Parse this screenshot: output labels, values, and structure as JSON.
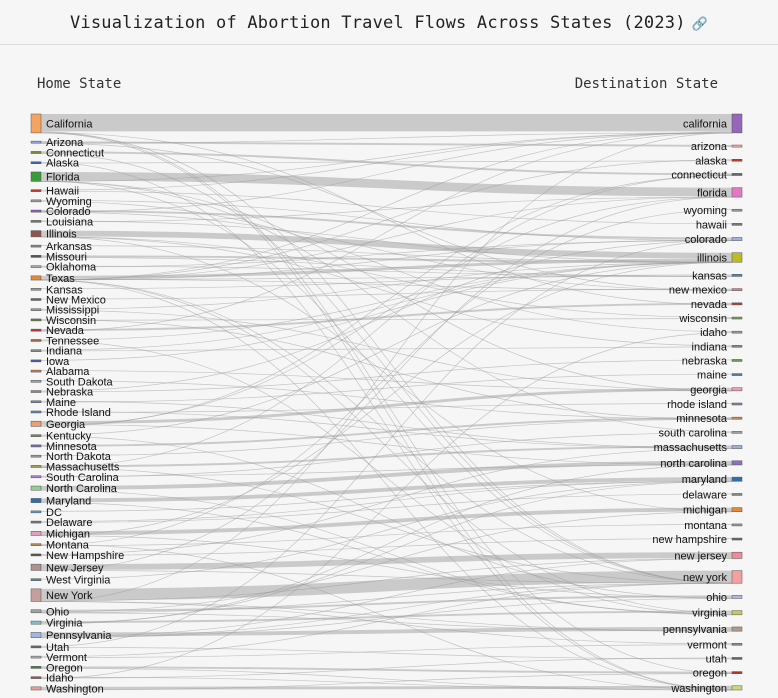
{
  "page": {
    "title": "Visualization of Abortion Travel Flows Across States (2023)",
    "title_icon": "link-icon",
    "home_label": "Home State",
    "dest_label": "Destination State"
  },
  "colors": {
    "background": "#f6f6f6",
    "link": "#bdbdbd",
    "title_icon": "#4a7fd6"
  },
  "home_states": [
    {
      "name": "California",
      "color": "#f4a460",
      "w": 18
    },
    {
      "name": "Arizona",
      "color": "#8ea1d8",
      "w": 2
    },
    {
      "name": "Connecticut",
      "color": "#7a8a3a",
      "w": 2
    },
    {
      "name": "Alaska",
      "color": "#4466aa",
      "w": 1
    },
    {
      "name": "Florida",
      "color": "#3c9a3c",
      "w": 9
    },
    {
      "name": "Hawaii",
      "color": "#c0392b",
      "w": 1
    },
    {
      "name": "Wyoming",
      "color": "#999999",
      "w": 1
    },
    {
      "name": "Colorado",
      "color": "#8a5ac8",
      "w": 2
    },
    {
      "name": "Louisiana",
      "color": "#777777",
      "w": 1
    },
    {
      "name": "Illinois",
      "color": "#8c564b",
      "w": 6
    },
    {
      "name": "Arkansas",
      "color": "#888888",
      "w": 1
    },
    {
      "name": "Missouri",
      "color": "#555555",
      "w": 2
    },
    {
      "name": "Oklahoma",
      "color": "#aaaaaa",
      "w": 1
    },
    {
      "name": "Texas",
      "color": "#e08a3c",
      "w": 4
    },
    {
      "name": "Kansas",
      "color": "#999999",
      "w": 1
    },
    {
      "name": "New Mexico",
      "color": "#666666",
      "w": 1
    },
    {
      "name": "Mississippi",
      "color": "#999999",
      "w": 1
    },
    {
      "name": "Wisconsin",
      "color": "#5f7f3f",
      "w": 1
    },
    {
      "name": "Nevada",
      "color": "#b03a3a",
      "w": 2
    },
    {
      "name": "Tennessee",
      "color": "#9a6a4a",
      "w": 1
    },
    {
      "name": "Indiana",
      "color": "#888888",
      "w": 1
    },
    {
      "name": "Iowa",
      "color": "#3f5fa0",
      "w": 1
    },
    {
      "name": "Alabama",
      "color": "#d07a3a",
      "w": 1
    },
    {
      "name": "South Dakota",
      "color": "#a0a0a0",
      "w": 1
    },
    {
      "name": "Nebraska",
      "color": "#888888",
      "w": 1
    },
    {
      "name": "Maine",
      "color": "#6a8ab0",
      "w": 1
    },
    {
      "name": "Rhode Island",
      "color": "#5a8ac0",
      "w": 1
    },
    {
      "name": "Georgia",
      "color": "#e8a070",
      "w": 5
    },
    {
      "name": "Kentucky",
      "color": "#8a7a5a",
      "w": 1
    },
    {
      "name": "Minnesota",
      "color": "#7a6ab0",
      "w": 2
    },
    {
      "name": "North Dakota",
      "color": "#999999",
      "w": 1
    },
    {
      "name": "Massachusetts",
      "color": "#a0a050",
      "w": 2
    },
    {
      "name": "South Carolina",
      "color": "#aa7fc0",
      "w": 2
    },
    {
      "name": "North Carolina",
      "color": "#8fd08f",
      "w": 4
    },
    {
      "name": "Maryland",
      "color": "#2f6fb0",
      "w": 4
    },
    {
      "name": "DC",
      "color": "#5a9ad0",
      "w": 1
    },
    {
      "name": "Delaware",
      "color": "#777777",
      "w": 1
    },
    {
      "name": "Michigan",
      "color": "#e0a0c0",
      "w": 4
    },
    {
      "name": "Montana",
      "color": "#b08a5a",
      "w": 1
    },
    {
      "name": "New Hampshire",
      "color": "#555555",
      "w": 1
    },
    {
      "name": "New Jersey",
      "color": "#b09090",
      "w": 6
    },
    {
      "name": "West Virginia",
      "color": "#4a8a8a",
      "w": 1
    },
    {
      "name": "New York",
      "color": "#c4a09a",
      "w": 12
    },
    {
      "name": "Ohio",
      "color": "#a0a0a0",
      "w": 3
    },
    {
      "name": "Virginia",
      "color": "#80c0c0",
      "w": 3
    },
    {
      "name": "Pennsylvania",
      "color": "#a0b8e0",
      "w": 5
    },
    {
      "name": "Utah",
      "color": "#666666",
      "w": 1
    },
    {
      "name": "Vermont",
      "color": "#aaaaaa",
      "w": 1
    },
    {
      "name": "Oregon",
      "color": "#3a8a3a",
      "w": 2
    },
    {
      "name": "Idaho",
      "color": "#b05050",
      "w": 1
    },
    {
      "name": "Washington",
      "color": "#f09a9a",
      "w": 3
    }
  ],
  "destination_states": [
    {
      "name": "california",
      "color": "#9467bd",
      "w": 18
    },
    {
      "name": "arizona",
      "color": "#f4a6a6",
      "w": 2
    },
    {
      "name": "alaska",
      "color": "#c0392b",
      "w": 1
    },
    {
      "name": "connecticut",
      "color": "#666666",
      "w": 2
    },
    {
      "name": "florida",
      "color": "#e377c2",
      "w": 9
    },
    {
      "name": "wyoming",
      "color": "#999999",
      "w": 1
    },
    {
      "name": "hawaii",
      "color": "#777777",
      "w": 1
    },
    {
      "name": "colorado",
      "color": "#a0b0e0",
      "w": 3
    },
    {
      "name": "illinois",
      "color": "#bcbd22",
      "w": 9
    },
    {
      "name": "kansas",
      "color": "#2f8fbf",
      "w": 2
    },
    {
      "name": "new mexico",
      "color": "#e08080",
      "w": 2
    },
    {
      "name": "nevada",
      "color": "#b03a3a",
      "w": 2
    },
    {
      "name": "wisconsin",
      "color": "#7a9a5a",
      "w": 1
    },
    {
      "name": "idaho",
      "color": "#999999",
      "w": 1
    },
    {
      "name": "indiana",
      "color": "#888888",
      "w": 1
    },
    {
      "name": "nebraska",
      "color": "#6a9a4a",
      "w": 1
    },
    {
      "name": "maine",
      "color": "#5a7aa0",
      "w": 1
    },
    {
      "name": "georgia",
      "color": "#e8a0b0",
      "w": 3
    },
    {
      "name": "rhode island",
      "color": "#7a8aa0",
      "w": 1
    },
    {
      "name": "minnesota",
      "color": "#c08a5a",
      "w": 2
    },
    {
      "name": "south carolina",
      "color": "#a0a0a0",
      "w": 1
    },
    {
      "name": "massachusetts",
      "color": "#a0b0d0",
      "w": 3
    },
    {
      "name": "north carolina",
      "color": "#8a70c0",
      "w": 4
    },
    {
      "name": "maryland",
      "color": "#2f6fb0",
      "w": 4
    },
    {
      "name": "delaware",
      "color": "#888888",
      "w": 1
    },
    {
      "name": "michigan",
      "color": "#e08a3c",
      "w": 4
    },
    {
      "name": "montana",
      "color": "#999999",
      "w": 1
    },
    {
      "name": "new hampshire",
      "color": "#666666",
      "w": 1
    },
    {
      "name": "new jersey",
      "color": "#f08a9a",
      "w": 6
    },
    {
      "name": "new york",
      "color": "#f4a0a0",
      "w": 12
    },
    {
      "name": "ohio",
      "color": "#c0b0e0",
      "w": 3
    },
    {
      "name": "virginia",
      "color": "#c8c85a",
      "w": 4
    },
    {
      "name": "pennsylvania",
      "color": "#b09a8a",
      "w": 4
    },
    {
      "name": "vermont",
      "color": "#888888",
      "w": 1
    },
    {
      "name": "utah",
      "color": "#666666",
      "w": 1
    },
    {
      "name": "oregon",
      "color": "#b03030",
      "w": 2
    },
    {
      "name": "washington",
      "color": "#c8d87a",
      "w": 4
    }
  ],
  "flows": [
    [
      "California",
      "california",
      18
    ],
    [
      "Florida",
      "florida",
      9
    ],
    [
      "New York",
      "new york",
      12
    ],
    [
      "Illinois",
      "illinois",
      6
    ],
    [
      "Texas",
      "illinois",
      3
    ],
    [
      "New Jersey",
      "new jersey",
      6
    ],
    [
      "Georgia",
      "georgia",
      3
    ],
    [
      "Pennsylvania",
      "pennsylvania",
      4
    ],
    [
      "Maryland",
      "maryland",
      4
    ],
    [
      "Michigan",
      "michigan",
      4
    ],
    [
      "North Carolina",
      "north carolina",
      4
    ],
    [
      "Washington",
      "washington",
      3
    ],
    [
      "Colorado",
      "colorado",
      2
    ],
    [
      "Massachusetts",
      "massachusetts",
      2
    ],
    [
      "Virginia",
      "virginia",
      2
    ],
    [
      "Ohio",
      "ohio",
      2
    ],
    [
      "Arizona",
      "arizona",
      2
    ],
    [
      "Connecticut",
      "connecticut",
      2
    ],
    [
      "Minnesota",
      "minnesota",
      2
    ],
    [
      "Nevada",
      "nevada",
      2
    ],
    [
      "Oregon",
      "oregon",
      2
    ],
    [
      "Missouri",
      "illinois",
      2
    ],
    [
      "Kansas",
      "kansas",
      1
    ],
    [
      "New Mexico",
      "new mexico",
      1
    ],
    [
      "South Carolina",
      "north carolina",
      1
    ],
    [
      "Texas",
      "new mexico",
      1
    ],
    [
      "Texas",
      "kansas",
      1
    ],
    [
      "Texas",
      "colorado",
      1
    ],
    [
      "Texas",
      "california",
      1
    ],
    [
      "Texas",
      "florida",
      1
    ],
    [
      "Texas",
      "new york",
      1
    ],
    [
      "Texas",
      "washington",
      1
    ],
    [
      "Texas",
      "virginia",
      1
    ],
    [
      "Oklahoma",
      "kansas",
      1
    ],
    [
      "Louisiana",
      "illinois",
      1
    ],
    [
      "Arkansas",
      "illinois",
      1
    ],
    [
      "Mississippi",
      "illinois",
      1
    ],
    [
      "Tennessee",
      "illinois",
      1
    ],
    [
      "Alabama",
      "georgia",
      1
    ],
    [
      "Kentucky",
      "illinois",
      1
    ],
    [
      "Indiana",
      "illinois",
      1
    ],
    [
      "Wisconsin",
      "minnesota",
      1
    ],
    [
      "Iowa",
      "illinois",
      1
    ],
    [
      "South Dakota",
      "minnesota",
      1
    ],
    [
      "Nebraska",
      "colorado",
      1
    ],
    [
      "Idaho",
      "washington",
      1
    ],
    [
      "Utah",
      "colorado",
      1
    ],
    [
      "West Virginia",
      "maryland",
      1
    ],
    [
      "Georgia",
      "north carolina",
      1
    ],
    [
      "Georgia",
      "florida",
      1
    ],
    [
      "Florida",
      "new york",
      1
    ],
    [
      "Florida",
      "georgia",
      1
    ],
    [
      "New York",
      "new jersey",
      1
    ],
    [
      "New Jersey",
      "new york",
      1
    ],
    [
      "Pennsylvania",
      "new jersey",
      1
    ],
    [
      "DC",
      "maryland",
      1
    ],
    [
      "Virginia",
      "maryland",
      1
    ],
    [
      "Ohio",
      "michigan",
      1
    ],
    [
      "Ohio",
      "pennsylvania",
      1
    ],
    [
      "Alaska",
      "washington",
      1
    ],
    [
      "Hawaii",
      "california",
      1
    ],
    [
      "Wyoming",
      "colorado",
      1
    ],
    [
      "Montana",
      "washington",
      1
    ],
    [
      "North Dakota",
      "minnesota",
      1
    ],
    [
      "Maine",
      "massachusetts",
      1
    ],
    [
      "Rhode Island",
      "massachusetts",
      1
    ],
    [
      "Vermont",
      "new york",
      1
    ],
    [
      "New Hampshire",
      "massachusetts",
      1
    ],
    [
      "Delaware",
      "maryland",
      1
    ],
    [
      "Massachusetts",
      "new york",
      1
    ],
    [
      "Connecticut",
      "new york",
      1
    ],
    [
      "Colorado",
      "california",
      1
    ],
    [
      "Arizona",
      "california",
      1
    ],
    [
      "Nevada",
      "california",
      1
    ],
    [
      "Oregon",
      "washington",
      1
    ],
    [
      "Washington",
      "oregon",
      1
    ],
    [
      "California",
      "oregon",
      1
    ],
    [
      "California",
      "nevada",
      1
    ],
    [
      "California",
      "washington",
      1
    ],
    [
      "California",
      "new york",
      1
    ],
    [
      "Illinois",
      "indiana",
      1
    ],
    [
      "Illinois",
      "wisconsin",
      1
    ],
    [
      "Michigan",
      "ohio",
      1
    ],
    [
      "Maryland",
      "virginia",
      1
    ],
    [
      "Pennsylvania",
      "new york",
      1
    ],
    [
      "New York",
      "vermont",
      1
    ],
    [
      "New York",
      "pennsylvania",
      1
    ],
    [
      "Florida",
      "south carolina",
      1
    ],
    [
      "Texas",
      "alaska",
      1
    ],
    [
      "Louisiana",
      "florida",
      1
    ],
    [
      "Mississippi",
      "georgia",
      1
    ],
    [
      "Tennessee",
      "virginia",
      1
    ],
    [
      "Kentucky",
      "ohio",
      1
    ],
    [
      "Missouri",
      "kansas",
      1
    ],
    [
      "Oklahoma",
      "colorado",
      1
    ],
    [
      "Idaho",
      "utah",
      1
    ],
    [
      "Wyoming",
      "idaho",
      1
    ],
    [
      "Montana",
      "wyoming",
      1
    ],
    [
      "Nebraska",
      "nebraska",
      1
    ],
    [
      "Maine",
      "maine",
      1
    ],
    [
      "Rhode Island",
      "rhode island",
      1
    ],
    [
      "Hawaii",
      "hawaii",
      1
    ],
    [
      "Delaware",
      "delaware",
      1
    ],
    [
      "New Hampshire",
      "new hampshire",
      1
    ],
    [
      "Montana",
      "montana",
      1
    ],
    [
      "Utah",
      "utah",
      1
    ],
    [
      "Vermont",
      "vermont",
      1
    ],
    [
      "Indiana",
      "indiana",
      1
    ],
    [
      "Alaska",
      "alaska",
      1
    ],
    [
      "Wisconsin",
      "wisconsin",
      1
    ],
    [
      "Idaho",
      "idaho",
      1
    ],
    [
      "South Carolina",
      "south carolina",
      1
    ],
    [
      "Georgia",
      "connecticut",
      1
    ],
    [
      "New Jersey",
      "florida",
      1
    ],
    [
      "North Carolina",
      "virginia",
      1
    ],
    [
      "Virginia",
      "north carolina",
      1
    ],
    [
      "Massachusetts",
      "connecticut",
      1
    ],
    [
      "Illinois",
      "michigan",
      1
    ],
    [
      "Colorado",
      "new mexico",
      1
    ],
    [
      "Arizona",
      "new mexico",
      1
    ],
    [
      "Florida",
      "california",
      1
    ],
    [
      "New York",
      "california",
      1
    ],
    [
      "Pennsylvania",
      "ohio",
      1
    ],
    [
      "Michigan",
      "illinois",
      1
    ],
    [
      "Ohio",
      "new york",
      1
    ]
  ]
}
